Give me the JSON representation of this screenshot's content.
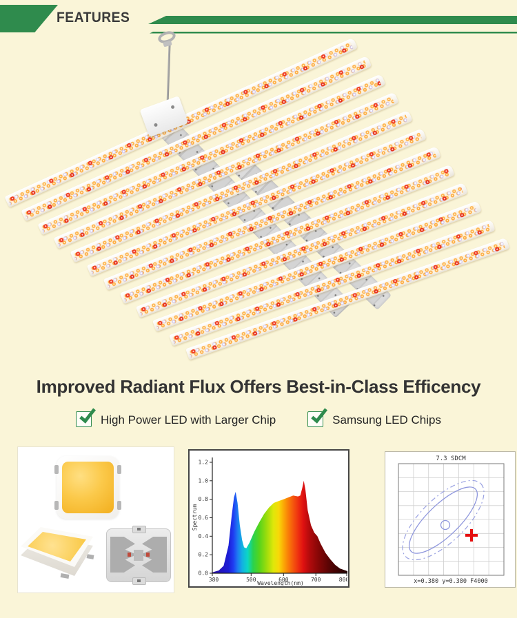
{
  "header": {
    "title": "FEATURES"
  },
  "section": {
    "title": "Improved Radiant Flux Offers Best-in-Class Efficency",
    "features": [
      {
        "label": "High Power LED with Larger Chip"
      },
      {
        "label": "Samsung LED Chips"
      }
    ]
  },
  "icons": {
    "checkmark": "✓"
  },
  "fixture": {
    "bar_count": 12,
    "led_colors": {
      "warm_white": "#ffb347",
      "cool_white": "#d9d2f4",
      "red": "#ee3a22"
    }
  },
  "theme": {
    "background": "#faf5d8",
    "accent_green": "#2f8b4d",
    "heading_text": "#3b3b3b",
    "body_text": "#242424",
    "panel_frame_dark": "#454545",
    "marker_red": "#e50e0e",
    "ellipse_blue": "#8f97dd",
    "chip_phosphor_yellow": "#fbc94a"
  },
  "panels": {
    "spectrum": {
      "ylabel": "Spectrum",
      "xlabel": "Wavelength(nm)"
    },
    "sdcm": {
      "title": "7.3 SDCM",
      "caption": "x=0.380 y=0.380 F4000"
    }
  },
  "chart_data": [
    {
      "type": "area",
      "title": "",
      "ylabel": "Spectrum",
      "xlabel": "Wavelength(nm)",
      "xlim": [
        380,
        800
      ],
      "ylim": [
        0,
        1.2
      ],
      "xticks": [
        "380",
        "500",
        "600",
        "700",
        "800"
      ],
      "yticks": [
        "0.0",
        "0.2",
        "0.4",
        "0.6",
        "0.8",
        "1.0",
        "1.2"
      ],
      "grid": false,
      "legend": "none",
      "fill": "wavelength-rainbow-gradient",
      "x": [
        380,
        400,
        415,
        430,
        440,
        447,
        452,
        458,
        465,
        472,
        478,
        485,
        495,
        510,
        525,
        540,
        555,
        570,
        585,
        600,
        615,
        630,
        645,
        652,
        658,
        663,
        668,
        675,
        685,
        695,
        705,
        715,
        730,
        745,
        760,
        775,
        800
      ],
      "y": [
        0.01,
        0.03,
        0.08,
        0.3,
        0.62,
        0.82,
        0.88,
        0.76,
        0.52,
        0.36,
        0.28,
        0.27,
        0.33,
        0.45,
        0.55,
        0.64,
        0.71,
        0.76,
        0.78,
        0.8,
        0.82,
        0.84,
        0.83,
        0.84,
        0.92,
        1.0,
        0.9,
        0.68,
        0.52,
        0.44,
        0.4,
        0.32,
        0.22,
        0.15,
        0.09,
        0.05,
        0.02
      ]
    },
    {
      "type": "scatter",
      "title": "7.3 SDCM",
      "annotation": "x=0.380 y=0.380 F4000",
      "grid": {
        "cols": 7,
        "rows": 8
      },
      "elements": [
        "solid-ellipse",
        "dash-dot-ellipse",
        "center-circle",
        "red-cross-marker"
      ]
    }
  ]
}
